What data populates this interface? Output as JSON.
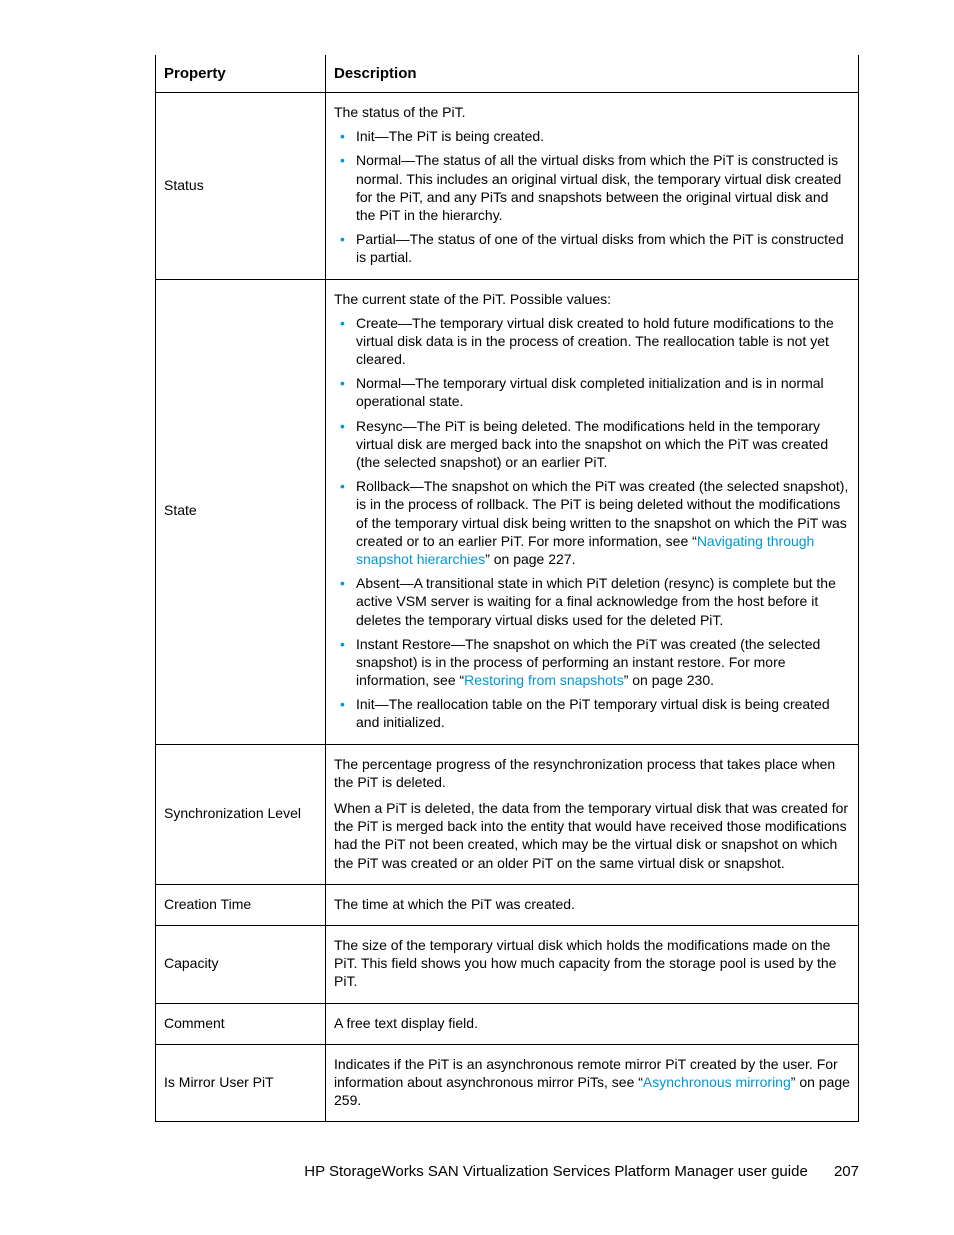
{
  "table": {
    "headers": {
      "property": "Property",
      "description": "Description"
    },
    "rows": [
      {
        "property": "Status",
        "intro": "The status of the PiT.",
        "bullets": [
          "Init—The PiT is being created.",
          "Normal—The status of all the virtual disks from which the PiT is constructed is normal. This includes an original virtual disk, the temporary virtual disk created for the PiT, and any PiTs and snapshots between the original virtual disk and the PiT in the hierarchy.",
          "Partial—The status of one of the virtual disks from which the PiT is constructed is partial."
        ]
      },
      {
        "property": "State",
        "intro": "The current state of the PiT. Possible values:",
        "bullets_rich": [
          [
            {
              "t": "Create—The temporary virtual disk created to hold future modifications to the virtual disk data is in the process of creation. The reallocation table is not yet cleared."
            }
          ],
          [
            {
              "t": "Normal—The temporary virtual disk completed initialization and is in normal operational state."
            }
          ],
          [
            {
              "t": "Resync—The PiT is being deleted. The modifications held in the temporary virtual disk are merged back into the snapshot on which the PiT was created (the selected snapshot) or an earlier PiT."
            }
          ],
          [
            {
              "t": "Rollback—The snapshot on which the PiT was created (the selected snapshot), is in the process of rollback. The PiT is being deleted without the modifications of the temporary virtual disk being written to the snapshot on which the PiT was created or to an earlier PiT. For more information, see “"
            },
            {
              "link": "Navigating through snapshot hierarchies"
            },
            {
              "t": "” on page 227."
            }
          ],
          [
            {
              "t": "Absent—A transitional state in which PiT deletion (resync) is complete but the active VSM server is waiting for a final acknowledge from the host before it deletes the temporary virtual disks used for the deleted PiT."
            }
          ],
          [
            {
              "t": "Instant Restore—The snapshot on which the PiT was created (the selected snapshot) is in the process of performing an instant restore. For more information, see “"
            },
            {
              "link": "Restoring from snapshots"
            },
            {
              "t": "” on page 230."
            }
          ],
          [
            {
              "t": "Init—The reallocation table on the PiT temporary virtual disk is being created and initialized."
            }
          ]
        ]
      },
      {
        "property": "Synchronization Level",
        "paras": [
          "The percentage progress of the resynchronization process that takes place when the PiT is deleted.",
          "When a PiT is deleted, the data from the temporary virtual disk that was created for the PiT is merged back into the entity that would have received those modifications had the PiT not been created, which may be the virtual disk or snapshot on which the PiT was created or an older PiT on the same virtual disk or snapshot."
        ]
      },
      {
        "property": "Creation Time",
        "paras": [
          "The time at which the PiT was created."
        ]
      },
      {
        "property": "Capacity",
        "paras": [
          "The size of the temporary virtual disk which holds the modifications made on the PiT. This field shows you how much capacity from the storage pool is used by the PiT."
        ]
      },
      {
        "property": "Comment",
        "paras": [
          "A free text display field."
        ]
      },
      {
        "property": "Is Mirror User PiT",
        "paras_rich": [
          [
            {
              "t": "Indicates if the PiT is an asynchronous remote mirror PiT created by the user. For information about asynchronous mirror PiTs, see “"
            },
            {
              "link": "Asynchronous mirroring"
            },
            {
              "t": "” on page 259."
            }
          ]
        ]
      }
    ]
  },
  "footer": {
    "title": "HP StorageWorks SAN Virtualization Services Platform Manager user guide",
    "page": "207"
  },
  "colors": {
    "link": "#0096d6",
    "bullet": "#0096d6",
    "text": "#000000",
    "border": "#000000"
  }
}
